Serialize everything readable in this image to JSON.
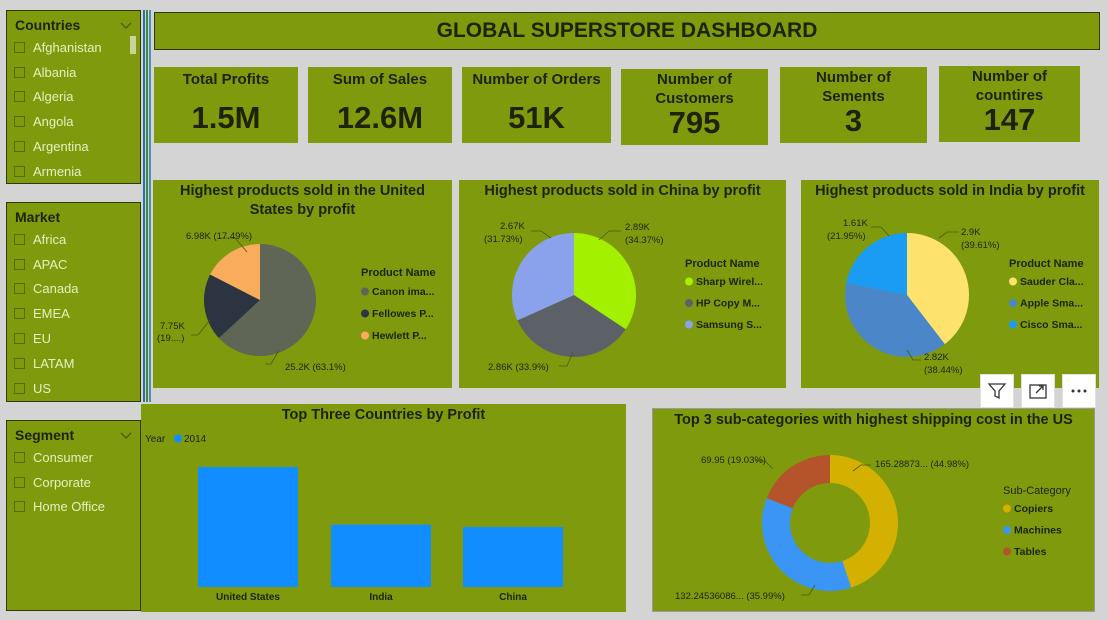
{
  "header": {
    "title": "GLOBAL SUPERSTORE DASHBOARD"
  },
  "slicers": {
    "countries": {
      "title": "Countries",
      "items": [
        "Afghanistan",
        "Albania",
        "Algeria",
        "Angola",
        "Argentina",
        "Armenia"
      ]
    },
    "market": {
      "title": "Market",
      "items": [
        "Africa",
        "APAC",
        "Canada",
        "EMEA",
        "EU",
        "LATAM",
        "US"
      ]
    },
    "segment": {
      "title": "Segment",
      "items": [
        "Consumer",
        "Corporate",
        "Home Office"
      ]
    }
  },
  "kpis": [
    {
      "label": "Total Profits",
      "value": "1.5M"
    },
    {
      "label": "Sum of Sales",
      "value": "12.6M"
    },
    {
      "label": "Number of Orders",
      "value": "51K"
    },
    {
      "label": "Number of Customers",
      "value": "795"
    },
    {
      "label": "Number of Sements",
      "value": "3"
    },
    {
      "label": "Number of countires",
      "value": "147"
    }
  ],
  "colors": {
    "panel": "#7f9b0d",
    "background": "#d4d4d4",
    "bar": "#118dff"
  },
  "visual_toolbar": {
    "icons": [
      "filter-icon",
      "focus-mode-icon",
      "more-options-icon"
    ]
  },
  "chart_data": [
    {
      "type": "pie",
      "title": "Highest products sold in the United States by profit",
      "legend_title": "Product Name",
      "legend_position": "right",
      "slices": [
        {
          "name": "Canon ima...",
          "value": 25.2,
          "label": "25.2K (63.1%)",
          "percent": 63.1,
          "color": "#5f6656"
        },
        {
          "name": "Fellowes P...",
          "value": 7.75,
          "label": "7.75K (19....)",
          "percent": 19.41,
          "color": "#2b3440"
        },
        {
          "name": "Hewlett P...",
          "value": 6.98,
          "label": "6.98K (17.49%)",
          "percent": 17.49,
          "color": "#f9ad5c"
        }
      ]
    },
    {
      "type": "pie",
      "title": "Highest products sold in China by profit",
      "legend_title": "Product Name",
      "legend_position": "right",
      "slices": [
        {
          "name": "Sharp Wirel...",
          "value": 2.89,
          "label": "2.89K (34.37%)",
          "percent": 34.37,
          "color": "#a3f000"
        },
        {
          "name": "HP Copy M...",
          "value": 2.86,
          "label": "2.86K (33.9%)",
          "percent": 33.9,
          "color": "#5c6168"
        },
        {
          "name": "Samsung S...",
          "value": 2.67,
          "label": "2.67K (31.73%)",
          "percent": 31.73,
          "color": "#8aa2ec"
        }
      ]
    },
    {
      "type": "pie",
      "title": "Highest products sold in India by profit",
      "legend_title": "Product Name",
      "legend_position": "right",
      "slices": [
        {
          "name": "Sauder Cla...",
          "value": 2.9,
          "label": "2.9K (39.61%)",
          "percent": 39.61,
          "color": "#fde36e"
        },
        {
          "name": "Apple Sma...",
          "value": 2.82,
          "label": "2.82K (38.44%)",
          "percent": 38.44,
          "color": "#4a86c8"
        },
        {
          "name": "Cisco Sma...",
          "value": 1.61,
          "label": "1.61K (21.95%)",
          "percent": 21.95,
          "color": "#1a9cf5"
        }
      ]
    },
    {
      "type": "bar",
      "title": "Top Three Countries by Profit",
      "legend_title": "Year",
      "series": [
        {
          "name": "2014",
          "values": [
            100,
            52,
            50
          ]
        }
      ],
      "categories": [
        "United States",
        "India",
        "China"
      ],
      "ylim": [
        0,
        100
      ],
      "grid": false,
      "legend_position": "top-left"
    },
    {
      "type": "pie",
      "donut": true,
      "title": "Top 3 sub-categories with highest shipping cost in the US",
      "legend_title": "Sub-Category",
      "legend_position": "right",
      "slices": [
        {
          "name": "Copiers",
          "value": 165.28873,
          "label": "165.28873... (44.98%)",
          "percent": 44.98,
          "color": "#d4b100"
        },
        {
          "name": "Machines",
          "value": 132.24536086,
          "label": "132.24536086... (35.99%)",
          "percent": 35.99,
          "color": "#3b95f5"
        },
        {
          "name": "Tables",
          "value": 69.95,
          "label": "69.95 (19.03%)",
          "percent": 19.03,
          "color": "#b5532b"
        }
      ]
    }
  ]
}
